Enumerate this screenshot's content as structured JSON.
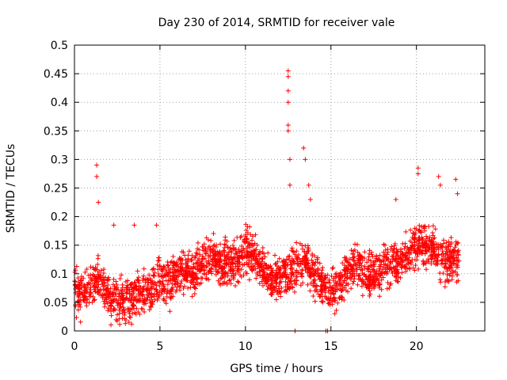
{
  "chart_data": {
    "type": "scatter",
    "title": "Day 230 of 2014, SRMTID for receiver vale",
    "xlabel": "GPS time / hours",
    "ylabel": "SRMTID / TECUs",
    "xlim": [
      0,
      24
    ],
    "ylim": [
      0,
      0.5
    ],
    "x_ticks": [
      0,
      5,
      10,
      15,
      20
    ],
    "x_tick_labels": [
      "0",
      "5",
      "10",
      "15",
      "20"
    ],
    "y_ticks": [
      0,
      0.05,
      0.1,
      0.15,
      0.2,
      0.25,
      0.3,
      0.35,
      0.4,
      0.45,
      0.5
    ],
    "y_tick_labels": [
      "0",
      "0.05",
      "0.1",
      "0.15",
      "0.2",
      "0.25",
      "0.3",
      "0.35",
      "0.4",
      "0.45",
      "0.5"
    ],
    "grid": true,
    "marker": "+",
    "color": "#ff0000",
    "trend_profile": {
      "hours": [
        0,
        0.5,
        1.0,
        1.5,
        2.0,
        2.5,
        3.0,
        3.5,
        4.0,
        4.5,
        5.0,
        5.5,
        6.0,
        6.5,
        7.0,
        7.5,
        8.0,
        8.5,
        9.0,
        9.5,
        10.0,
        10.5,
        11.0,
        11.5,
        12.0,
        12.5,
        13.0,
        13.5,
        14.0,
        14.5,
        15.0,
        15.5,
        16.0,
        16.5,
        17.0,
        17.5,
        18.0,
        18.5,
        19.0,
        19.5,
        20.0,
        20.5,
        21.0,
        21.5,
        22.0,
        22.5
      ],
      "median_srmtid": [
        0.07,
        0.06,
        0.08,
        0.09,
        0.06,
        0.05,
        0.05,
        0.06,
        0.07,
        0.07,
        0.09,
        0.08,
        0.1,
        0.1,
        0.1,
        0.12,
        0.13,
        0.11,
        0.12,
        0.12,
        0.14,
        0.13,
        0.11,
        0.09,
        0.09,
        0.1,
        0.11,
        0.12,
        0.1,
        0.08,
        0.07,
        0.08,
        0.11,
        0.12,
        0.1,
        0.1,
        0.11,
        0.12,
        0.12,
        0.14,
        0.15,
        0.15,
        0.14,
        0.12,
        0.12,
        0.13
      ]
    },
    "peak_points": [
      {
        "x": 1.3,
        "y": 0.29
      },
      {
        "x": 1.3,
        "y": 0.27
      },
      {
        "x": 1.4,
        "y": 0.225
      },
      {
        "x": 2.3,
        "y": 0.185
      },
      {
        "x": 3.5,
        "y": 0.185
      },
      {
        "x": 4.8,
        "y": 0.185
      },
      {
        "x": 12.5,
        "y": 0.455
      },
      {
        "x": 12.5,
        "y": 0.445
      },
      {
        "x": 12.5,
        "y": 0.42
      },
      {
        "x": 12.5,
        "y": 0.4
      },
      {
        "x": 12.5,
        "y": 0.36
      },
      {
        "x": 12.5,
        "y": 0.35
      },
      {
        "x": 12.6,
        "y": 0.3
      },
      {
        "x": 12.6,
        "y": 0.255
      },
      {
        "x": 13.4,
        "y": 0.32
      },
      {
        "x": 13.5,
        "y": 0.3
      },
      {
        "x": 13.7,
        "y": 0.255
      },
      {
        "x": 13.8,
        "y": 0.23
      },
      {
        "x": 18.8,
        "y": 0.23
      },
      {
        "x": 20.1,
        "y": 0.285
      },
      {
        "x": 20.1,
        "y": 0.275
      },
      {
        "x": 21.3,
        "y": 0.27
      },
      {
        "x": 21.4,
        "y": 0.255
      },
      {
        "x": 22.3,
        "y": 0.265
      },
      {
        "x": 22.4,
        "y": 0.24
      },
      {
        "x": 12.9,
        "y": 0.0
      },
      {
        "x": 14.7,
        "y": 0.0
      },
      {
        "x": 14.8,
        "y": 0.0
      }
    ]
  }
}
